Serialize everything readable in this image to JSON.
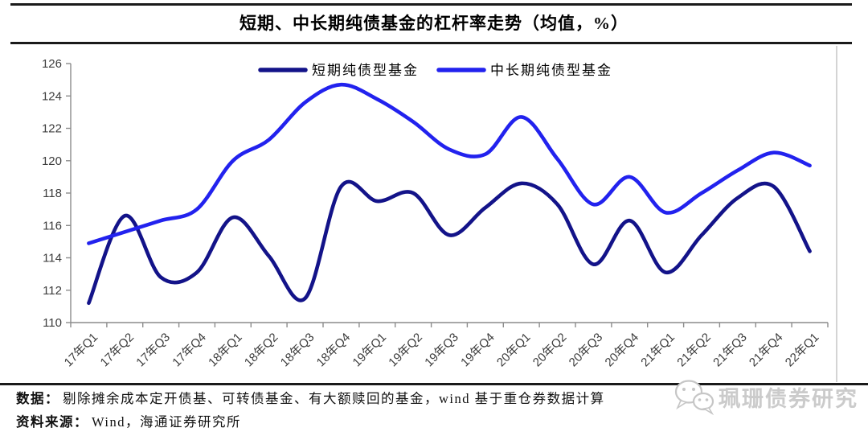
{
  "title": "短期、中长期纯债基金的杠杆率走势（均值，%）",
  "chart_data": {
    "type": "line",
    "title": "短期、中长期纯债基金的杠杆率走势（均值，%）",
    "categories": [
      "17年Q1",
      "17年Q2",
      "17年Q3",
      "17年Q4",
      "18年Q1",
      "18年Q2",
      "18年Q3",
      "18年Q4",
      "19年Q1",
      "19年Q2",
      "19年Q3",
      "19年Q4",
      "20年Q1",
      "20年Q2",
      "20年Q3",
      "20年Q4",
      "21年Q1",
      "21年Q2",
      "21年Q3",
      "21年Q4",
      "22年Q1"
    ],
    "series": [
      {
        "name": "短期纯债型基金",
        "color": "#131389",
        "values": [
          111.2,
          116.6,
          112.8,
          113.1,
          116.5,
          114.1,
          111.5,
          118.4,
          117.5,
          118.0,
          115.4,
          117.1,
          118.6,
          117.3,
          113.6,
          116.3,
          113.1,
          115.4,
          117.7,
          118.4,
          114.4
        ]
      },
      {
        "name": "中长期纯债型基金",
        "color": "#2222ee",
        "values": [
          114.9,
          115.6,
          116.3,
          117.0,
          120.0,
          121.3,
          123.6,
          124.7,
          123.8,
          122.4,
          120.7,
          120.4,
          122.7,
          120.1,
          117.3,
          119.0,
          116.8,
          118.0,
          119.4,
          120.5,
          119.7
        ]
      }
    ],
    "ylim": [
      110,
      126
    ],
    "ytick_step": 2,
    "grid": false,
    "legend_position": "top-center"
  },
  "footer": {
    "data_label": "数据：",
    "data_text": "剔除摊余成本定开债基、可转债基金、有大额赎回的基金，wind 基于重仓券数据计算",
    "source_label": "资料来源：",
    "source_text": "Wind，海通证券研究所"
  },
  "watermark": {
    "text": "珮珊债券研究"
  }
}
